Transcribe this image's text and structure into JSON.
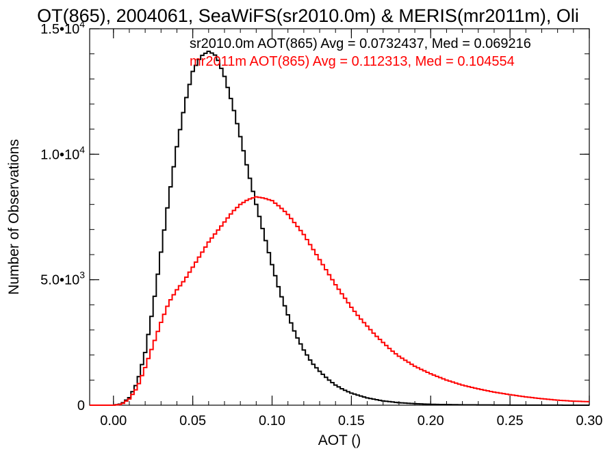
{
  "chart_data": {
    "type": "line",
    "title": "OT(865), 2004061, SeaWiFS(sr2010.0m) & MERIS(mr2011m), Oli",
    "xlabel": "AOT ()",
    "ylabel": "Number of Observations",
    "xlim": [
      -0.015,
      0.3
    ],
    "ylim": [
      0,
      15000
    ],
    "x_ticks": [
      0.0,
      0.05,
      0.1,
      0.15,
      0.2,
      0.25,
      0.3
    ],
    "x_tick_labels": [
      "0.00",
      "0.05",
      "0.10",
      "0.15",
      "0.20",
      "0.25",
      "0.30"
    ],
    "y_ticks": [
      {
        "value": 0,
        "mantissa": "0",
        "exp": ""
      },
      {
        "value": 5000,
        "mantissa": "5.0•10",
        "exp": "3"
      },
      {
        "value": 10000,
        "mantissa": "1.0•10",
        "exp": "4"
      },
      {
        "value": 15000,
        "mantissa": "1.5•10",
        "exp": "4"
      }
    ],
    "grid": false,
    "series": [
      {
        "label": "sr2010.0m AOT(865) Avg = 0.0732437, Med = 0.069216",
        "color": "#000000",
        "x": [
          -0.015,
          0.0,
          0.005,
          0.01,
          0.015,
          0.02,
          0.025,
          0.03,
          0.035,
          0.04,
          0.045,
          0.05,
          0.055,
          0.06,
          0.063,
          0.065,
          0.07,
          0.075,
          0.08,
          0.085,
          0.09,
          0.095,
          0.1,
          0.105,
          0.11,
          0.115,
          0.12,
          0.125,
          0.13,
          0.135,
          0.14,
          0.145,
          0.15,
          0.16,
          0.17,
          0.18,
          0.19,
          0.2,
          0.22,
          0.25,
          0.3
        ],
        "y": [
          0,
          0,
          50,
          300,
          900,
          2100,
          3900,
          6100,
          8300,
          10300,
          12000,
          13300,
          13900,
          14100,
          14000,
          13900,
          13100,
          12000,
          10700,
          9300,
          8000,
          6800,
          5600,
          4500,
          3600,
          2800,
          2200,
          1700,
          1350,
          1050,
          800,
          620,
          480,
          290,
          170,
          100,
          60,
          35,
          15,
          5,
          0
        ]
      },
      {
        "label": "mr2011m AOT(865) Avg = 0.112313, Med = 0.104554",
        "color": "#ff0000",
        "x": [
          -0.015,
          0.0,
          0.005,
          0.01,
          0.015,
          0.02,
          0.025,
          0.03,
          0.035,
          0.04,
          0.045,
          0.05,
          0.055,
          0.06,
          0.065,
          0.07,
          0.075,
          0.08,
          0.085,
          0.09,
          0.095,
          0.1,
          0.105,
          0.11,
          0.115,
          0.12,
          0.125,
          0.13,
          0.135,
          0.14,
          0.145,
          0.15,
          0.155,
          0.16,
          0.165,
          0.17,
          0.175,
          0.18,
          0.19,
          0.2,
          0.21,
          0.22,
          0.23,
          0.24,
          0.25,
          0.26,
          0.27,
          0.28,
          0.29,
          0.3
        ],
        "y": [
          0,
          0,
          30,
          250,
          700,
          1500,
          2400,
          3300,
          4100,
          4600,
          5000,
          5500,
          6000,
          6500,
          6900,
          7300,
          7700,
          8000,
          8200,
          8300,
          8250,
          8150,
          7900,
          7600,
          7200,
          6800,
          6300,
          5800,
          5300,
          4800,
          4350,
          3900,
          3500,
          3150,
          2800,
          2500,
          2200,
          1950,
          1550,
          1250,
          1000,
          800,
          650,
          520,
          420,
          330,
          260,
          200,
          160,
          140
        ]
      }
    ]
  }
}
